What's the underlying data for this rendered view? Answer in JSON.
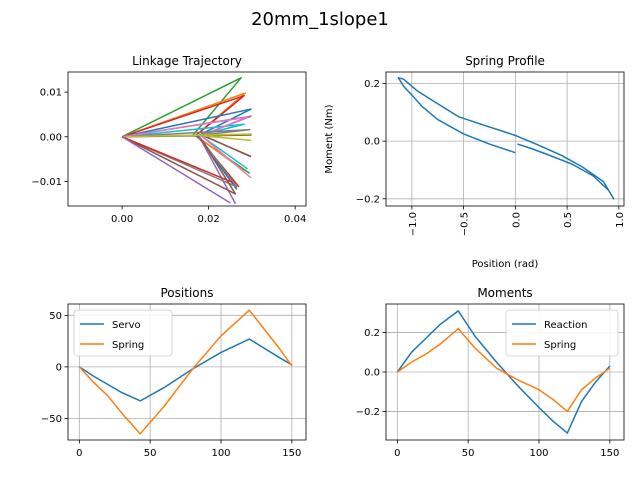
{
  "figure_title": "20mm_1slope1",
  "colors": {
    "tab_blue": "#1f77b4",
    "tab_orange": "#ff7f0e",
    "tab_green": "#2ca02c",
    "tab_red": "#d62728",
    "tab_purple": "#9467bd",
    "tab_brown": "#8c564b",
    "tab_pink": "#e377c2",
    "tab_gray": "#7f7f7f",
    "tab_olive": "#bcbd22",
    "tab_cyan": "#17becf",
    "grid": "#b0b0b0"
  },
  "chart_data": [
    {
      "id": "trajectory",
      "type": "line",
      "title": "Linkage Trajectory",
      "xlabel": "",
      "ylabel": "",
      "xlim": [
        -0.0125,
        0.0425
      ],
      "ylim": [
        -0.0155,
        0.0145
      ],
      "xticks": [
        0.0,
        0.02,
        0.04
      ],
      "xtick_labels": [
        "0.00",
        "0.02",
        "0.04"
      ],
      "yticks": [
        -0.01,
        0.0,
        0.01
      ],
      "ytick_labels": [
        "−0.01",
        "0.00",
        "0.01"
      ],
      "grid": false,
      "series": [
        {
          "color": "#2ca02c",
          "x": [
            0,
            0.0275,
            0.0165,
            0.0295
          ],
          "y": [
            0,
            0.0132,
            0.0005,
            -0.0082
          ]
        },
        {
          "color": "#ff7f0e",
          "x": [
            0,
            0.0285,
            0.017,
            0.028
          ],
          "y": [
            0,
            0.0098,
            0.0003,
            -0.0075
          ]
        },
        {
          "color": "#d62728",
          "x": [
            0,
            0.0282,
            0.0172,
            0.027
          ],
          "y": [
            0,
            0.0092,
            0.0004,
            -0.0112
          ]
        },
        {
          "color": "#1f77b4",
          "x": [
            0,
            0.0298,
            0.0175,
            0.0265
          ],
          "y": [
            0,
            0.0062,
            0.0002,
            -0.0118
          ]
        },
        {
          "color": "#9467bd",
          "x": [
            0,
            0.0298,
            0.0178,
            0.0262
          ],
          "y": [
            0,
            0.0046,
            0.0001,
            -0.015
          ]
        },
        {
          "color": "#17becf",
          "x": [
            0,
            0.0282,
            0.018,
            0.029
          ],
          "y": [
            0,
            0.0028,
            0.0004,
            -0.0072
          ]
        },
        {
          "color": "#e377c2",
          "x": [
            0,
            0.029,
            0.0182,
            0.0298
          ],
          "y": [
            0,
            0.0044,
            0.0003,
            -0.0092
          ]
        },
        {
          "color": "#7f7f7f",
          "x": [
            0,
            0.0295,
            0.0185,
            0.0298
          ],
          "y": [
            0,
            0.0016,
            0.0004,
            -0.0045
          ]
        },
        {
          "color": "#8c564b",
          "x": [
            0,
            0.0298,
            0.0188,
            0.0298
          ],
          "y": [
            0,
            0.0004,
            0.0002,
            -0.0044
          ]
        },
        {
          "color": "#bcbd22",
          "x": [
            0,
            0.0298,
            0.0176,
            0.0298
          ],
          "y": [
            0,
            0.0006,
            0.0003,
            -0.0008
          ]
        },
        {
          "color": "#7f7f7f",
          "x": [
            0,
            0.0265,
            0.018
          ],
          "y": [
            0,
            -0.0112,
            -0.0002
          ]
        },
        {
          "color": "#8c564b",
          "x": [
            0,
            0.0262,
            0.0182
          ],
          "y": [
            0,
            -0.0128,
            -0.0004
          ]
        },
        {
          "color": "#d62728",
          "x": [
            0,
            0.0255
          ],
          "y": [
            0,
            -0.0102
          ]
        },
        {
          "color": "#9467bd",
          "x": [
            0,
            0.025
          ],
          "y": [
            0,
            -0.0148
          ]
        }
      ]
    },
    {
      "id": "spring_profile",
      "type": "line",
      "title": "Spring Profile",
      "xlabel": "Position (rad)",
      "ylabel": "Moment (Nm)",
      "xlim": [
        -1.25,
        1.05
      ],
      "ylim": [
        -0.225,
        0.24
      ],
      "xticks": [
        -1.0,
        -0.5,
        0.0,
        0.5,
        1.0
      ],
      "xtick_labels": [
        "−1.0",
        "−0.5",
        "0.0",
        "0.5",
        "1.0"
      ],
      "yticks": [
        -0.2,
        0.0,
        0.2
      ],
      "ytick_labels": [
        "−0.2",
        "0.0",
        "0.2"
      ],
      "grid": true,
      "series": [
        {
          "color": "#1f77b4",
          "x": [
            0.0,
            -0.25,
            -0.5,
            -0.75,
            -0.9,
            -1.0,
            -1.08,
            -1.13,
            -1.08,
            -0.95,
            -0.75,
            -0.55,
            -0.3,
            0.0,
            0.2,
            0.45,
            0.65,
            0.85,
            0.95,
            0.9,
            0.75,
            0.55,
            0.3,
            0.15,
            0.02
          ],
          "y": [
            -0.04,
            -0.01,
            0.025,
            0.075,
            0.12,
            0.16,
            0.19,
            0.22,
            0.215,
            0.175,
            0.13,
            0.085,
            0.055,
            0.02,
            -0.01,
            -0.05,
            -0.09,
            -0.14,
            -0.2,
            -0.17,
            -0.12,
            -0.08,
            -0.045,
            -0.025,
            -0.01
          ]
        }
      ]
    },
    {
      "id": "positions",
      "type": "line",
      "title": "Positions",
      "xlabel": "",
      "ylabel": "",
      "xlim": [
        -8,
        160
      ],
      "ylim": [
        -71,
        61
      ],
      "xticks": [
        0,
        50,
        100,
        150
      ],
      "xtick_labels": [
        "0",
        "50",
        "100",
        "150"
      ],
      "yticks": [
        -50,
        0,
        50
      ],
      "ytick_labels": [
        "−50",
        "0",
        "50"
      ],
      "grid": true,
      "legend": {
        "location": "top-left"
      },
      "series": [
        {
          "name": "Servo",
          "color": "#1f77b4",
          "x": [
            0,
            10,
            20,
            30,
            43,
            60,
            80,
            100,
            120,
            140,
            150
          ],
          "y": [
            0,
            -9,
            -17,
            -25,
            -33,
            -20,
            -2,
            14,
            27,
            10,
            2
          ]
        },
        {
          "name": "Spring",
          "color": "#ff7f0e",
          "x": [
            0,
            10,
            20,
            30,
            43,
            60,
            80,
            100,
            120,
            140,
            150
          ],
          "y": [
            0,
            -15,
            -28,
            -45,
            -65,
            -38,
            -2,
            30,
            55,
            20,
            1
          ]
        }
      ]
    },
    {
      "id": "moments",
      "type": "line",
      "title": "Moments",
      "xlabel": "",
      "ylabel": "",
      "xlim": [
        -8,
        160
      ],
      "ylim": [
        -0.345,
        0.345
      ],
      "xticks": [
        0,
        50,
        100,
        150
      ],
      "xtick_labels": [
        "0",
        "50",
        "100",
        "150"
      ],
      "yticks": [
        -0.2,
        0.0,
        0.2
      ],
      "ytick_labels": [
        "−0.2",
        "0.0",
        "0.2"
      ],
      "grid": true,
      "legend": {
        "location": "top-right"
      },
      "series": [
        {
          "name": "Reaction",
          "color": "#1f77b4",
          "x": [
            0,
            10,
            20,
            30,
            43,
            55,
            70,
            85,
            100,
            110,
            120,
            130,
            140,
            150
          ],
          "y": [
            0,
            0.1,
            0.17,
            0.24,
            0.31,
            0.18,
            0.05,
            -0.07,
            -0.18,
            -0.25,
            -0.31,
            -0.15,
            -0.05,
            0.03
          ]
        },
        {
          "name": "Spring",
          "color": "#ff7f0e",
          "x": [
            0,
            10,
            20,
            30,
            43,
            55,
            70,
            85,
            100,
            110,
            120,
            130,
            140,
            150
          ],
          "y": [
            0,
            0.05,
            0.09,
            0.14,
            0.22,
            0.12,
            0.02,
            -0.04,
            -0.09,
            -0.14,
            -0.2,
            -0.09,
            -0.03,
            0.02
          ]
        }
      ]
    }
  ]
}
